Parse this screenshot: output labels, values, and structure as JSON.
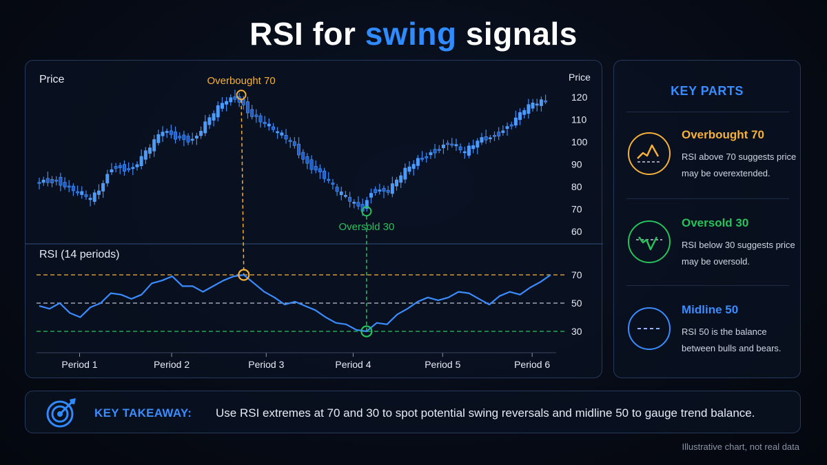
{
  "title": {
    "prefix": "RSI for ",
    "highlight": "swing",
    "suffix": " signals"
  },
  "chart_data": [
    {
      "type": "candlestick",
      "panel_label": "Price",
      "ylabel": "Price",
      "ylim": [
        60,
        120
      ],
      "yticks": [
        "120",
        "110",
        "100",
        "90",
        "80",
        "70",
        "60"
      ],
      "path_points": [
        [
          0,
          82
        ],
        [
          4,
          83
        ],
        [
          8,
          78
        ],
        [
          11,
          74
        ],
        [
          13,
          80
        ],
        [
          15,
          89
        ],
        [
          19,
          88
        ],
        [
          22,
          96
        ],
        [
          25,
          105
        ],
        [
          28,
          102
        ],
        [
          31,
          101
        ],
        [
          34,
          110
        ],
        [
          37,
          118
        ],
        [
          39.5,
          120
        ],
        [
          42,
          113
        ],
        [
          45,
          108
        ],
        [
          48,
          103
        ],
        [
          50,
          100
        ],
        [
          53,
          91
        ],
        [
          56,
          86
        ],
        [
          59,
          78
        ],
        [
          62,
          73
        ],
        [
          64,
          70
        ],
        [
          66,
          79
        ],
        [
          69,
          78
        ],
        [
          72,
          86
        ],
        [
          75,
          92
        ],
        [
          78,
          96
        ],
        [
          81,
          100
        ],
        [
          84,
          95
        ],
        [
          87,
          101
        ],
        [
          90,
          103
        ],
        [
          93,
          108
        ],
        [
          96,
          115
        ],
        [
          99,
          118
        ]
      ],
      "markers": [
        {
          "label": "Overbought 70",
          "x": 39.5,
          "y": 121,
          "color": "#f5b13b",
          "label_pos": "above"
        },
        {
          "label": "Oversold 30",
          "x": 64,
          "y": 69,
          "color": "#27c25a",
          "label_pos": "below"
        }
      ]
    },
    {
      "type": "line",
      "panel_label": "RSI (14 periods)",
      "ylim": [
        30,
        70
      ],
      "levels": [
        {
          "value": 70,
          "label": "70",
          "color": "#f5b13b"
        },
        {
          "value": 50,
          "label": "50",
          "color": "#b8c0d0"
        },
        {
          "value": 30,
          "label": "30",
          "color": "#27c25a"
        }
      ],
      "categories": [
        "Period 1",
        "Period 2",
        "Period 3",
        "Period 4",
        "Period 5",
        "Period 6"
      ],
      "category_positions": [
        9.5,
        27.5,
        46,
        63,
        80.5,
        98
      ],
      "points": [
        [
          0,
          48
        ],
        [
          2,
          46
        ],
        [
          4,
          50
        ],
        [
          6,
          43
        ],
        [
          8,
          40
        ],
        [
          10,
          47
        ],
        [
          12,
          50
        ],
        [
          14,
          57
        ],
        [
          16,
          56
        ],
        [
          18,
          53
        ],
        [
          20,
          56
        ],
        [
          22,
          64
        ],
        [
          24,
          66
        ],
        [
          26,
          69
        ],
        [
          28,
          62
        ],
        [
          30,
          62
        ],
        [
          32,
          58
        ],
        [
          34,
          62
        ],
        [
          36,
          66
        ],
        [
          38,
          69
        ],
        [
          40,
          70
        ],
        [
          42,
          64
        ],
        [
          44,
          58
        ],
        [
          46,
          54
        ],
        [
          48,
          49
        ],
        [
          50,
          51
        ],
        [
          52,
          48
        ],
        [
          54,
          45
        ],
        [
          56,
          40
        ],
        [
          58,
          36
        ],
        [
          60,
          35
        ],
        [
          62,
          31
        ],
        [
          64,
          30
        ],
        [
          66,
          36
        ],
        [
          68,
          35
        ],
        [
          70,
          42
        ],
        [
          72,
          46
        ],
        [
          74,
          51
        ],
        [
          76,
          54
        ],
        [
          78,
          52
        ],
        [
          80,
          54
        ],
        [
          82,
          58
        ],
        [
          84,
          57
        ],
        [
          86,
          53
        ],
        [
          88,
          49
        ],
        [
          90,
          55
        ],
        [
          92,
          58
        ],
        [
          94,
          56
        ],
        [
          96,
          61
        ],
        [
          98,
          65
        ],
        [
          100,
          70
        ]
      ],
      "markers": [
        {
          "x": 40,
          "y": 70,
          "color": "#f5b13b"
        },
        {
          "x": 64,
          "y": 30,
          "color": "#27c25a"
        }
      ]
    }
  ],
  "key_parts": {
    "title": "KEY PARTS",
    "items": [
      {
        "name": "Overbought 70",
        "desc": "RSI above 70 suggests price may be overextended.",
        "color": "#f5b13b",
        "icon": "peak-icon"
      },
      {
        "name": "Oversold 30",
        "desc": "RSI below 30 suggests price may be oversold.",
        "color": "#27c25a",
        "icon": "trough-icon"
      },
      {
        "name": "Midline 50",
        "desc": "RSI 50 is the balance between bulls and bears.",
        "color": "#3b8cff",
        "icon": "midline-icon"
      }
    ]
  },
  "takeaway": {
    "label": "KEY TAKEAWAY:",
    "text": "Use RSI extremes at 70 and 30 to spot potential swing reversals and midline 50 to gauge trend balance.",
    "icon": "target-icon"
  },
  "footnote": "Illustrative chart, not real data",
  "colors": {
    "accent": "#2f8bff",
    "overbought": "#f5b13b",
    "oversold": "#27c25a",
    "candle": "#3b8cff"
  }
}
